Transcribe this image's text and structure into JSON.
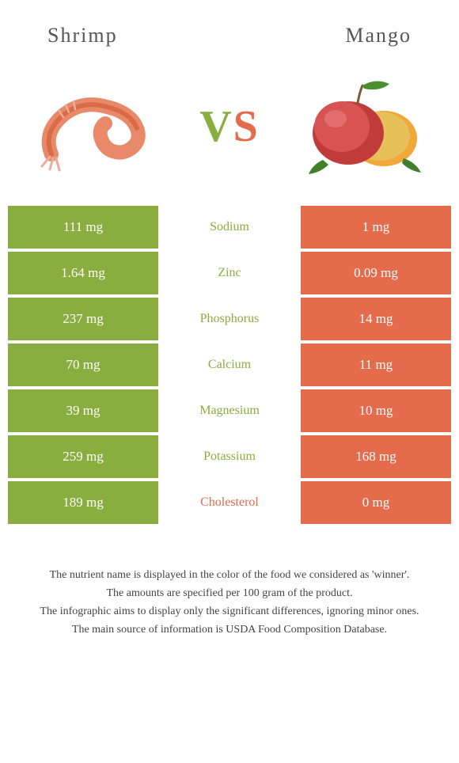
{
  "colors": {
    "left": "#8aad3f",
    "right": "#e46b4c",
    "text": "#555555",
    "background": "#ffffff"
  },
  "foods": {
    "left": {
      "name": "Shrimp"
    },
    "right": {
      "name": "Mango"
    }
  },
  "vs_label": {
    "v": "V",
    "s": "S"
  },
  "nutrients": [
    {
      "label": "Sodium",
      "left": "111 mg",
      "right": "1 mg",
      "winner": "left"
    },
    {
      "label": "Zinc",
      "left": "1.64 mg",
      "right": "0.09 mg",
      "winner": "left"
    },
    {
      "label": "Phosphorus",
      "left": "237 mg",
      "right": "14 mg",
      "winner": "left"
    },
    {
      "label": "Calcium",
      "left": "70 mg",
      "right": "11 mg",
      "winner": "left"
    },
    {
      "label": "Magnesium",
      "left": "39 mg",
      "right": "10 mg",
      "winner": "left"
    },
    {
      "label": "Potassium",
      "left": "259 mg",
      "right": "168 mg",
      "winner": "left"
    },
    {
      "label": "Cholesterol",
      "left": "189 mg",
      "right": "0 mg",
      "winner": "right"
    }
  ],
  "footnotes": [
    "The nutrient name is displayed in the color of the food we considered as 'winner'.",
    "The amounts are specified per 100 gram of the product.",
    "The infographic aims to display only the significant differences, ignoring minor ones.",
    "The main source of information is USDA Food Composition Database."
  ]
}
